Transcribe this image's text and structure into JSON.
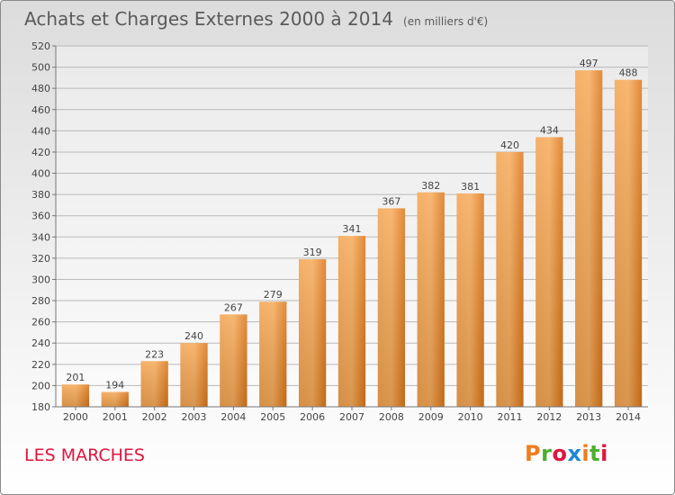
{
  "chart_data": {
    "type": "bar",
    "title": "Achats et Charges Externes 2000 à 2014",
    "subtitle": "(en milliers d'€)",
    "categories": [
      "2000",
      "2001",
      "2002",
      "2003",
      "2004",
      "2005",
      "2006",
      "2007",
      "2008",
      "2009",
      "2010",
      "2011",
      "2012",
      "2013",
      "2014"
    ],
    "values": [
      201,
      194,
      223,
      240,
      267,
      279,
      319,
      341,
      367,
      382,
      381,
      420,
      434,
      497,
      488
    ],
    "ylim": [
      180,
      520
    ],
    "yticks": [
      180,
      200,
      220,
      240,
      260,
      280,
      300,
      320,
      340,
      360,
      380,
      400,
      420,
      440,
      460,
      480,
      500,
      520
    ],
    "grid": true,
    "bar_color": "#ee8a2e"
  },
  "footer": {
    "commune": "LES MARCHES",
    "brand": "Proxiti",
    "brand_colors": [
      "#f07c1e",
      "#4caf2d",
      "#e0153e",
      "#1e88d6",
      "#f07c1e",
      "#4caf2d",
      "#e0153e"
    ]
  }
}
